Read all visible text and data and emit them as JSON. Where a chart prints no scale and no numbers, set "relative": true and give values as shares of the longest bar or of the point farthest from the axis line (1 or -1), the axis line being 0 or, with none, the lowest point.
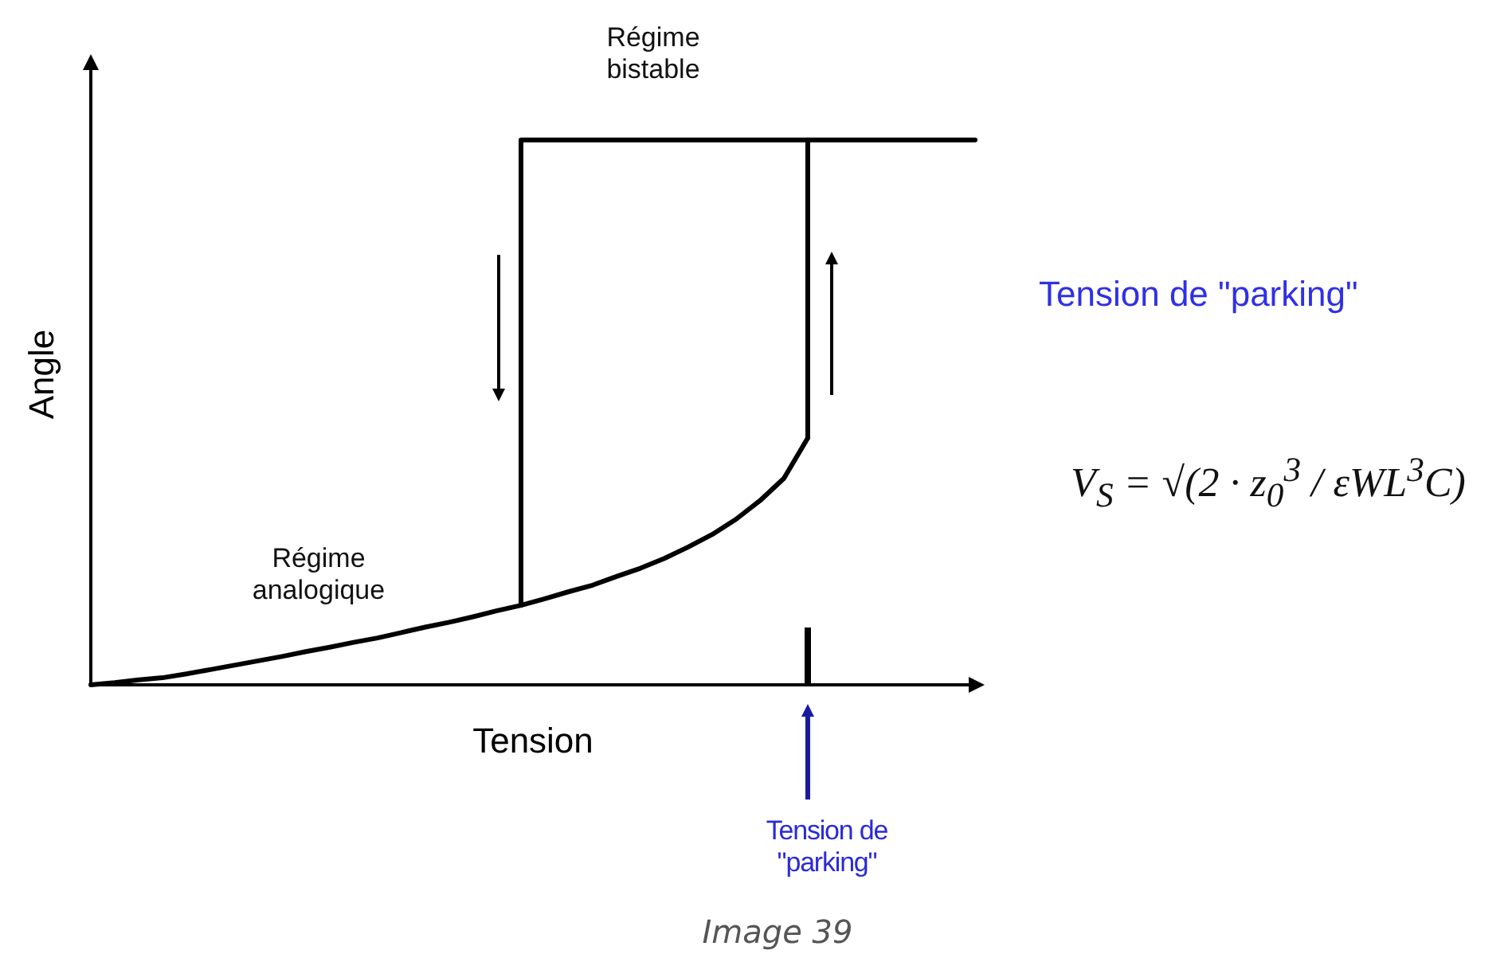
{
  "chart_data": {
    "type": "line",
    "xlabel": "Tension",
    "ylabel": "Angle",
    "relative": true,
    "categories": [
      null,
      null,
      null,
      null,
      null,
      null,
      null,
      null,
      null,
      null,
      null,
      null,
      null,
      null,
      null,
      null,
      null,
      null,
      null,
      null,
      null,
      null,
      null,
      null,
      null,
      null,
      null,
      null,
      null,
      null,
      null,
      null,
      null,
      null,
      null,
      null,
      null,
      null
    ],
    "series": [
      {
        "color": "#000000",
        "values": [
          0,
          0.004,
          0.009,
          0.013,
          0.02,
          0.028,
          0.036,
          0.044,
          0.052,
          0.061,
          0.069,
          0.078,
          0.086,
          0.096,
          0.106,
          0.115,
          0.125,
          0.136,
          0.146,
          0.158,
          0.171,
          0.183,
          0.199,
          0.214,
          0.232,
          0.253,
          0.276,
          0.304,
          0.338,
          0.379,
          0.453,
          null,
          null,
          null,
          null,
          null,
          null,
          null
        ]
      },
      {
        "type": "step",
        "color": "#000000",
        "values": [
          null,
          null,
          null,
          null,
          null,
          null,
          null,
          null,
          null,
          null,
          null,
          null,
          null,
          null,
          null,
          null,
          null,
          null,
          0.146,
          1,
          1,
          1,
          1,
          1,
          1,
          1,
          1,
          1,
          1,
          1,
          1,
          null,
          null,
          null,
          null,
          null,
          null,
          null
        ]
      },
      {
        "type": "step",
        "color": "#000000",
        "values": [
          null,
          null,
          null,
          null,
          null,
          null,
          null,
          null,
          null,
          null,
          null,
          null,
          null,
          null,
          null,
          null,
          null,
          null,
          null,
          null,
          null,
          null,
          null,
          null,
          null,
          null,
          null,
          null,
          null,
          null,
          0.453,
          1,
          1,
          1,
          1,
          1,
          1,
          1
        ]
      }
    ],
    "annotations": [
      "Régime bistable",
      "Régime analogique",
      "Tension de \"parking\"",
      "Tension de \"parking\"",
      "V$_{S}$ = √(2 · z$_{0}$$^{3}$ / εWL$^{3}$C)",
      "Image 39"
    ]
  }
}
